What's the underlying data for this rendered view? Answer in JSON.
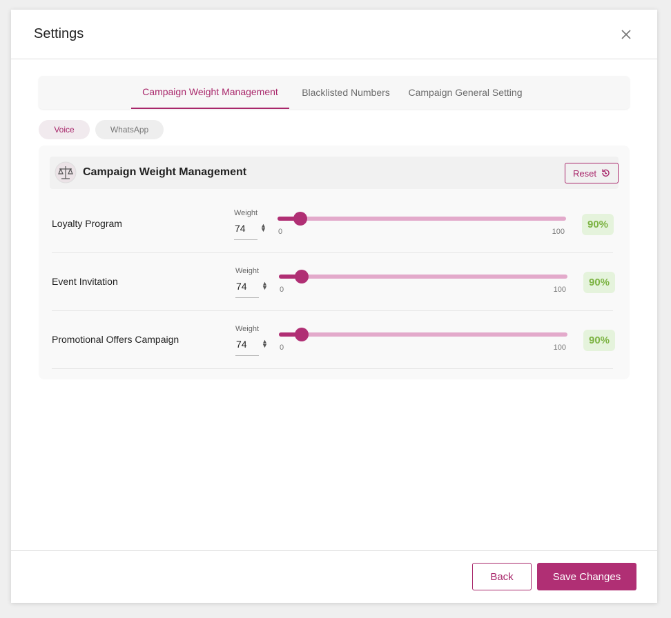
{
  "dialog": {
    "title": "Settings",
    "tabs": [
      "Campaign Weight Management",
      "Blacklisted Numbers",
      "Campaign General Setting"
    ],
    "active_tab": 0,
    "channels": [
      "Voice",
      "WhatsApp"
    ],
    "active_channel": 0,
    "panel": {
      "title": "Campaign Weight Management",
      "reset": "Reset",
      "rows": [
        {
          "label": "Loyalty Program",
          "weight_label": "Weight",
          "weight": 74,
          "slider": {
            "min": 0,
            "max": 100,
            "value": 8
          },
          "percent": "90%"
        },
        {
          "label": "Event Invitation",
          "weight_label": "Weight",
          "weight": 74,
          "slider": {
            "min": 0,
            "max": 100,
            "value": 8
          },
          "percent": "90%"
        },
        {
          "label": "Promotional Offers Campaign",
          "weight_label": "Weight",
          "weight": 74,
          "slider": {
            "min": 0,
            "max": 100,
            "value": 8
          },
          "percent": "90%"
        }
      ]
    },
    "buttons": {
      "back": "Back",
      "save": "Save Changes"
    }
  }
}
